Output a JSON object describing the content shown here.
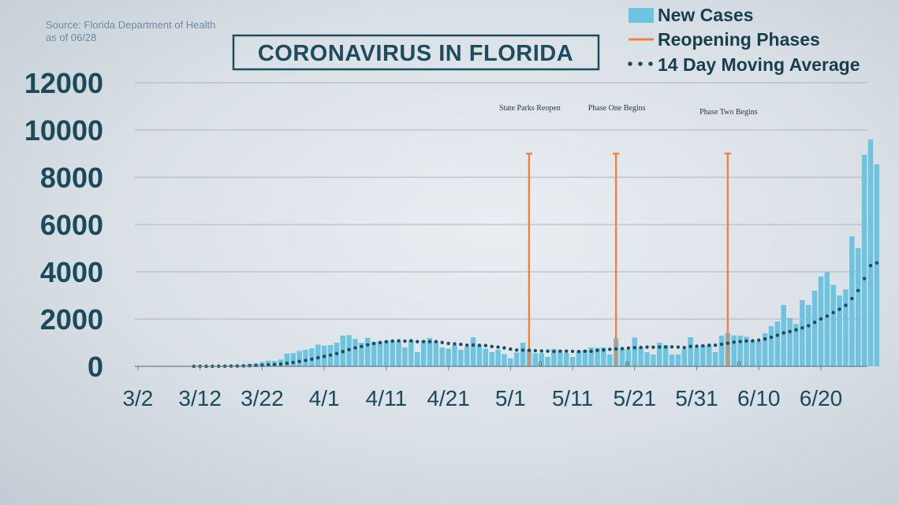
{
  "source": {
    "line1": "Source: Florida Department of Health",
    "line2": "as of 06/28"
  },
  "colors": {
    "bar": "#6ec3e0",
    "phase_line": "#f0803c",
    "moving_average": "#1d4d5c",
    "gridline": "#a9b5be",
    "text": "#1b4a5a"
  },
  "chart_data": {
    "type": "bar",
    "title": "CORONAVIRUS IN FLORIDA",
    "xlabel": "",
    "ylabel": "",
    "ylim": [
      0,
      12000
    ],
    "yticks": [
      0,
      2000,
      4000,
      6000,
      8000,
      10000,
      12000
    ],
    "grid": true,
    "legend_position": "top-right",
    "x_start": "3/2",
    "x_end": "6/27",
    "x_ticks": [
      "3/2",
      "3/12",
      "3/22",
      "4/1",
      "4/11",
      "4/21",
      "5/1",
      "5/11",
      "5/21",
      "5/31",
      "6/10",
      "6/20"
    ],
    "legend": [
      {
        "label": "New Cases",
        "kind": "bar"
      },
      {
        "label": "Reopening Phases",
        "kind": "line"
      },
      {
        "label": "14 Day Moving Average",
        "kind": "dots"
      }
    ],
    "series": [
      {
        "name": "New Cases",
        "kind": "bar",
        "values": [
          0,
          0,
          0,
          0,
          0,
          2,
          0,
          2,
          3,
          3,
          5,
          11,
          16,
          10,
          45,
          50,
          55,
          70,
          105,
          130,
          180,
          240,
          225,
          290,
          540,
          560,
          650,
          700,
          760,
          920,
          870,
          900,
          1000,
          1300,
          1320,
          1160,
          1000,
          1200,
          1040,
          1040,
          1100,
          1080,
          1050,
          800,
          1100,
          600,
          1100,
          1200,
          1050,
          800,
          750,
          900,
          700,
          830,
          1230,
          900,
          750,
          600,
          700,
          520,
          340,
          580,
          1000,
          700,
          560,
          560,
          400,
          740,
          650,
          570,
          400,
          650,
          700,
          800,
          780,
          800,
          500,
          1190,
          750,
          700,
          1220,
          800,
          600,
          500,
          1000,
          900,
          500,
          500,
          720,
          1230,
          800,
          900,
          880,
          600,
          1300,
          1400,
          1310,
          1300,
          1250,
          1100,
          1050,
          1400,
          1700,
          1900,
          2600,
          2050,
          1800,
          2800,
          2600,
          3200,
          3800,
          4000,
          3450,
          3000,
          3250,
          5500,
          5000,
          8950,
          9600,
          8550
        ]
      },
      {
        "name": "14 Day Moving Average",
        "kind": "dots",
        "values": [
          0,
          0,
          0,
          0,
          0,
          0,
          0,
          0,
          0,
          1,
          1,
          2,
          3,
          4,
          7,
          11,
          15,
          19,
          26,
          35,
          47,
          62,
          77,
          96,
          130,
          165,
          208,
          252,
          301,
          363,
          418,
          472,
          539,
          626,
          706,
          785,
          842,
          911,
          965,
          1006,
          1041,
          1072,
          1082,
          1063,
          1081,
          1045,
          1046,
          1046,
          1047,
          1010,
          970,
          950,
          930,
          895,
          902,
          890,
          881,
          841,
          816,
          779,
          731,
          690,
          684,
          678,
          663,
          650,
          643,
          631,
          645,
          645,
          636,
          628,
          638,
          636,
          677,
          692,
          720,
          740,
          750,
          771,
          788,
          800,
          816,
          811,
          817,
          819,
          822,
          815,
          795,
          844,
          851,
          870,
          891,
          895,
          937,
          978,
          1025,
          1050,
          1073,
          1081,
          1108,
          1160,
          1232,
          1315,
          1413,
          1471,
          1545,
          1627,
          1720,
          1860,
          2004,
          2122,
          2278,
          2414,
          2583,
          2868,
          3207,
          3712,
          4264,
          4375
        ]
      }
    ],
    "reopening_phases": [
      {
        "label": "State Parks Reopen",
        "date": "5/4",
        "value": 9000,
        "marker": "0"
      },
      {
        "label": "Phase One Begins",
        "date": "5/18",
        "value": 9000,
        "marker": "0"
      },
      {
        "label": "Phase Two Begins",
        "date": "6/5",
        "value": 9000,
        "marker": "0"
      }
    ]
  }
}
